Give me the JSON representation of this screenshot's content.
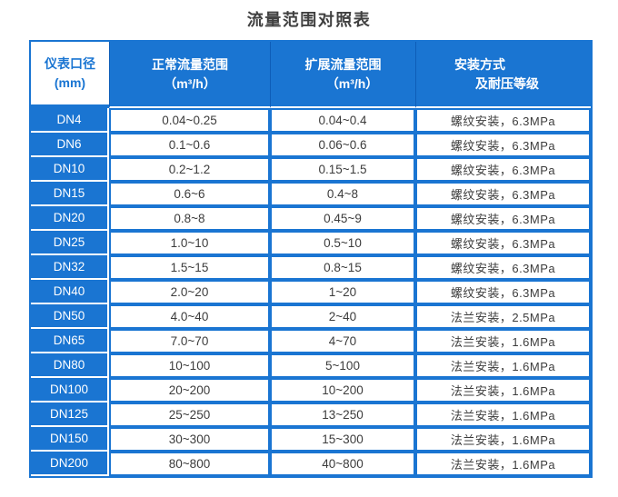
{
  "page": {
    "title": "流量范围对照表"
  },
  "colors": {
    "primary_blue": "#1a75d2",
    "header_divider_blue": "#0d5db8",
    "cell_background": "#ffffff",
    "value_text": "#3c3c3c",
    "title_text": "#404040"
  },
  "table": {
    "headers": {
      "col1": {
        "line1": "仪表口径",
        "line2": "(mm)"
      },
      "col2": {
        "line1": "正常流量范围",
        "line2": "（m³/h）"
      },
      "col3": {
        "line1": "扩展流量范围",
        "line2": "（m³/h）"
      },
      "col4": {
        "line1": "安装方式",
        "line2": "及耐压等级"
      }
    },
    "rows": [
      {
        "dn": "DN4",
        "normal": "0.04~0.25",
        "extended": "0.04~0.4",
        "install": "螺纹安装，6.3MPa"
      },
      {
        "dn": "DN6",
        "normal": "0.1~0.6",
        "extended": "0.06~0.6",
        "install": "螺纹安装，6.3MPa"
      },
      {
        "dn": "DN10",
        "normal": "0.2~1.2",
        "extended": "0.15~1.5",
        "install": "螺纹安装，6.3MPa"
      },
      {
        "dn": "DN15",
        "normal": "0.6~6",
        "extended": "0.4~8",
        "install": "螺纹安装，6.3MPa"
      },
      {
        "dn": "DN20",
        "normal": "0.8~8",
        "extended": "0.45~9",
        "install": "螺纹安装，6.3MPa"
      },
      {
        "dn": "DN25",
        "normal": "1.0~10",
        "extended": "0.5~10",
        "install": "螺纹安装，6.3MPa"
      },
      {
        "dn": "DN32",
        "normal": "1.5~15",
        "extended": "0.8~15",
        "install": "螺纹安装，6.3MPa"
      },
      {
        "dn": "DN40",
        "normal": "2.0~20",
        "extended": "1~20",
        "install": "螺纹安装，6.3MPa"
      },
      {
        "dn": "DN50",
        "normal": "4.0~40",
        "extended": "2~40",
        "install": "法兰安装，2.5MPa"
      },
      {
        "dn": "DN65",
        "normal": "7.0~70",
        "extended": "4~70",
        "install": "法兰安装，1.6MPa"
      },
      {
        "dn": "DN80",
        "normal": "10~100",
        "extended": "5~100",
        "install": "法兰安装，1.6MPa"
      },
      {
        "dn": "DN100",
        "normal": "20~200",
        "extended": "10~200",
        "install": "法兰安装，1.6MPa"
      },
      {
        "dn": "DN125",
        "normal": "25~250",
        "extended": "13~250",
        "install": "法兰安装，1.6MPa"
      },
      {
        "dn": "DN150",
        "normal": "30~300",
        "extended": "15~300",
        "install": "法兰安装，1.6MPa"
      },
      {
        "dn": "DN200",
        "normal": "80~800",
        "extended": "40~800",
        "install": "法兰安装，1.6MPa"
      }
    ]
  }
}
